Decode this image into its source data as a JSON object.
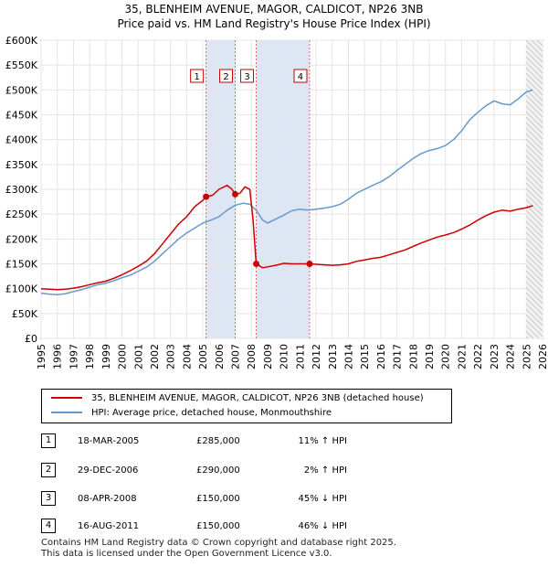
{
  "title": {
    "line1": "35, BLENHEIM AVENUE, MAGOR, CALDICOT, NP26 3NB",
    "line2": "Price paid vs. HM Land Registry's House Price Index (HPI)"
  },
  "legend": {
    "red_label": "35, BLENHEIM AVENUE, MAGOR, CALDICOT, NP26 3NB (detached house)",
    "blue_label": "HPI: Average price, detached house, Monmouthshire"
  },
  "sales": [
    {
      "num": "1",
      "date": "18-MAR-2005",
      "price": "£285,000",
      "hpi": "11% ↑ HPI"
    },
    {
      "num": "2",
      "date": "29-DEC-2006",
      "price": "£290,000",
      "hpi": "2% ↑ HPI"
    },
    {
      "num": "3",
      "date": "08-APR-2008",
      "price": "£150,000",
      "hpi": "45% ↓ HPI"
    },
    {
      "num": "4",
      "date": "16-AUG-2011",
      "price": "£150,000",
      "hpi": "46% ↓ HPI"
    }
  ],
  "footer": {
    "line1": "Contains HM Land Registry data © Crown copyright and database right 2025.",
    "line2": "This data is licensed under the Open Government Licence v3.0."
  },
  "colors": {
    "price_paid": "#cc0000",
    "hpi": "#6699cc",
    "sale_band": "#dde6f5",
    "grid": "#e4e4e4",
    "badge_border": "#cc0000"
  },
  "chart_data": {
    "type": "line",
    "xlim": [
      1995,
      2026
    ],
    "ylim": [
      0,
      600000
    ],
    "x_ticks": [
      "1995",
      "1996",
      "1997",
      "1998",
      "1999",
      "2000",
      "2001",
      "2002",
      "2003",
      "2004",
      "2005",
      "2006",
      "2007",
      "2008",
      "2009",
      "2010",
      "2011",
      "2012",
      "2013",
      "2014",
      "2015",
      "2016",
      "2017",
      "2018",
      "2019",
      "2020",
      "2021",
      "2022",
      "2023",
      "2024",
      "2025",
      "2026"
    ],
    "y_ticks": [
      {
        "value": 0,
        "label": "£0"
      },
      {
        "value": 50000,
        "label": "£50K"
      },
      {
        "value": 100000,
        "label": "£100K"
      },
      {
        "value": 150000,
        "label": "£150K"
      },
      {
        "value": 200000,
        "label": "£200K"
      },
      {
        "value": 250000,
        "label": "£250K"
      },
      {
        "value": 300000,
        "label": "£300K"
      },
      {
        "value": 350000,
        "label": "£350K"
      },
      {
        "value": 400000,
        "label": "£400K"
      },
      {
        "value": 450000,
        "label": "£450K"
      },
      {
        "value": 500000,
        "label": "£500K"
      },
      {
        "value": 550000,
        "label": "£550K"
      },
      {
        "value": 600000,
        "label": "£600K"
      }
    ],
    "grid": true,
    "forecast_start": 2025.0,
    "shaded_periods": [
      [
        2005.2,
        2007.0
      ],
      [
        2008.3,
        2011.6
      ]
    ],
    "sale_markers": [
      {
        "label": "1",
        "x": 2005.2,
        "y": 285000
      },
      {
        "label": "2",
        "x": 2007.0,
        "y": 290000
      },
      {
        "label": "3",
        "x": 2008.3,
        "y": 150000
      },
      {
        "label": "4",
        "x": 2011.6,
        "y": 150000
      }
    ],
    "series": [
      {
        "name": "35, BLENHEIM AVENUE, MAGOR, CALDICOT, NP26 3NB (detached house)",
        "x": [
          1995.0,
          1995.5,
          1996.0,
          1996.5,
          1997.0,
          1997.5,
          1998.0,
          1998.5,
          1999.0,
          1999.5,
          2000.0,
          2000.5,
          2001.0,
          2001.5,
          2002.0,
          2002.5,
          2003.0,
          2003.5,
          2004.0,
          2004.5,
          2005.0,
          2005.2,
          2005.6,
          2006.0,
          2006.5,
          2006.8,
          2007.0,
          2007.3,
          2007.6,
          2007.9,
          2008.1,
          2008.3,
          2008.7,
          2009.0,
          2009.5,
          2010.0,
          2010.5,
          2011.0,
          2011.6,
          2012.0,
          2012.5,
          2013.0,
          2013.5,
          2014.0,
          2014.5,
          2015.0,
          2015.5,
          2016.0,
          2016.5,
          2017.0,
          2017.5,
          2018.0,
          2018.5,
          2019.0,
          2019.5,
          2020.0,
          2020.5,
          2021.0,
          2021.5,
          2022.0,
          2022.5,
          2023.0,
          2023.5,
          2024.0,
          2024.5,
          2025.0,
          2025.4
        ],
        "values": [
          100000,
          99000,
          98000,
          99000,
          101000,
          104000,
          108000,
          112000,
          115000,
          121000,
          128000,
          136000,
          145000,
          155000,
          170000,
          190000,
          210000,
          230000,
          245000,
          265000,
          278000,
          285000,
          288000,
          300000,
          308000,
          300000,
          290000,
          292000,
          305000,
          300000,
          240000,
          150000,
          142000,
          144000,
          147000,
          151000,
          150000,
          150000,
          150000,
          149000,
          148000,
          147000,
          148000,
          150000,
          155000,
          158000,
          161000,
          163000,
          168000,
          173000,
          178000,
          185000,
          192000,
          198000,
          204000,
          208000,
          213000,
          220000,
          228000,
          238000,
          247000,
          254000,
          258000,
          256000,
          260000,
          263000,
          267000
        ]
      },
      {
        "name": "HPI: Average price, detached house, Monmouthshire",
        "x": [
          1995.0,
          1995.5,
          1996.0,
          1996.5,
          1997.0,
          1997.5,
          1998.0,
          1998.5,
          1999.0,
          1999.5,
          2000.0,
          2000.5,
          2001.0,
          2001.5,
          2002.0,
          2002.5,
          2003.0,
          2003.5,
          2004.0,
          2004.5,
          2005.0,
          2005.5,
          2006.0,
          2006.5,
          2007.0,
          2007.5,
          2007.9,
          2008.3,
          2008.7,
          2009.0,
          2009.5,
          2010.0,
          2010.5,
          2011.0,
          2011.5,
          2012.0,
          2012.5,
          2013.0,
          2013.5,
          2014.0,
          2014.5,
          2015.0,
          2015.5,
          2016.0,
          2016.5,
          2017.0,
          2017.5,
          2018.0,
          2018.5,
          2019.0,
          2019.5,
          2020.0,
          2020.5,
          2021.0,
          2021.5,
          2022.0,
          2022.5,
          2023.0,
          2023.5,
          2024.0,
          2024.5,
          2025.0,
          2025.4
        ],
        "values": [
          91000,
          89000,
          88000,
          90000,
          94000,
          98000,
          103000,
          108000,
          111000,
          116000,
          122000,
          127000,
          135000,
          143000,
          155000,
          170000,
          185000,
          200000,
          212000,
          222000,
          232000,
          238000,
          245000,
          258000,
          268000,
          272000,
          270000,
          258000,
          238000,
          232000,
          240000,
          248000,
          257000,
          260000,
          258000,
          260000,
          262000,
          265000,
          270000,
          280000,
          292000,
          300000,
          308000,
          315000,
          325000,
          338000,
          350000,
          362000,
          372000,
          378000,
          382000,
          388000,
          400000,
          418000,
          440000,
          455000,
          468000,
          478000,
          472000,
          470000,
          482000,
          496000,
          500000
        ]
      }
    ]
  }
}
